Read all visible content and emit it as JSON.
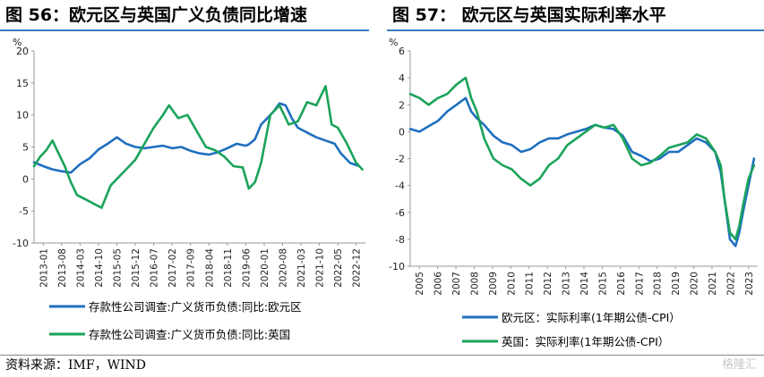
{
  "left_panel": {
    "title": "图 56：欧元区与英国广义负债同比增速",
    "unit": "%",
    "source": "资料来源：IMF，WIND"
  },
  "right_panel": {
    "title": "图 57：  欧元区与英国实际利率水平",
    "unit": "%"
  },
  "watermark": "格隆汇",
  "colors": {
    "series_a": "#1f6fbf",
    "series_b": "#1aa35a",
    "rule": "#3a7bbf"
  },
  "chart_data": [
    {
      "type": "line",
      "title": "图 56：欧元区与英国广义负债同比增速",
      "ylabel": "%",
      "ylim": [
        -10,
        20
      ],
      "yticks": [
        -10,
        -5,
        0,
        5,
        10,
        15,
        20
      ],
      "xlim": [
        2013.0,
        2023.8
      ],
      "xticks": [
        "2013-01",
        "2013-08",
        "2014-03",
        "2014-10",
        "2015-05",
        "2015-12",
        "2016-07",
        "2017-02",
        "2017-09",
        "2018-04",
        "2018-11",
        "2019-06",
        "2020-01",
        "2020-08",
        "2021-03",
        "2021-10",
        "2022-05",
        "2022-12"
      ],
      "legend_position": "bottom",
      "series": [
        {
          "name": "存款性公司调查:广义货币负债:同比:欧元区",
          "x": [
            2013.0,
            2013.3,
            2013.6,
            2013.9,
            2014.2,
            2014.5,
            2014.8,
            2015.1,
            2015.4,
            2015.7,
            2016.0,
            2016.3,
            2016.6,
            2016.9,
            2017.2,
            2017.5,
            2017.8,
            2018.1,
            2018.4,
            2018.7,
            2019.0,
            2019.3,
            2019.6,
            2019.9,
            2020.0,
            2020.2,
            2020.4,
            2020.6,
            2020.8,
            2021.0,
            2021.2,
            2021.4,
            2021.6,
            2021.8,
            2022.0,
            2022.2,
            2022.5,
            2022.8,
            2023.0,
            2023.3,
            2023.6
          ],
          "values": [
            2.6,
            2.0,
            1.5,
            1.2,
            1.0,
            2.3,
            3.2,
            4.6,
            5.5,
            6.5,
            5.5,
            5.0,
            4.8,
            5.0,
            5.2,
            4.8,
            5.0,
            4.4,
            4.0,
            3.8,
            4.2,
            4.8,
            5.5,
            5.2,
            5.4,
            6.2,
            8.5,
            9.5,
            10.5,
            11.8,
            11.5,
            9.5,
            8.0,
            7.5,
            7.0,
            6.5,
            6.0,
            5.5,
            4.0,
            2.5,
            2.0
          ]
        },
        {
          "name": "存款性公司调查:广义货币负债:同比:英国",
          "x": [
            2013.0,
            2013.2,
            2013.4,
            2013.6,
            2013.8,
            2014.0,
            2014.2,
            2014.4,
            2014.6,
            2014.8,
            2015.0,
            2015.2,
            2015.5,
            2015.8,
            2016.0,
            2016.3,
            2016.6,
            2016.9,
            2017.2,
            2017.4,
            2017.7,
            2018.0,
            2018.3,
            2018.6,
            2018.9,
            2019.2,
            2019.5,
            2019.8,
            2020.0,
            2020.2,
            2020.4,
            2020.7,
            2021.0,
            2021.3,
            2021.6,
            2021.9,
            2022.2,
            2022.5,
            2022.7,
            2022.9,
            2023.2,
            2023.5,
            2023.7
          ],
          "values": [
            2.0,
            3.5,
            4.5,
            6.0,
            4.0,
            2.0,
            -0.5,
            -2.5,
            -3.0,
            -3.5,
            -4.0,
            -4.5,
            -1.0,
            0.5,
            1.5,
            3.0,
            5.5,
            8.0,
            10.0,
            11.5,
            9.5,
            10.0,
            7.5,
            5.0,
            4.5,
            3.5,
            2.0,
            1.8,
            -1.5,
            -0.5,
            2.5,
            10.0,
            11.5,
            8.5,
            9.0,
            12.0,
            11.5,
            14.5,
            8.5,
            8.0,
            5.5,
            2.5,
            1.5
          ]
        }
      ]
    },
    {
      "type": "line",
      "title": "图 57：  欧元区与英国实际利率水平",
      "ylabel": "%",
      "ylim": [
        -10,
        6
      ],
      "yticks": [
        -10,
        -8,
        -6,
        -4,
        -2,
        0,
        2,
        4,
        6
      ],
      "xlim": [
        2005.0,
        2023.8
      ],
      "xticks": [
        "2005",
        "2006",
        "2007",
        "2008",
        "2009",
        "2010",
        "2011",
        "2012",
        "2013",
        "2014",
        "2015",
        "2016",
        "2017",
        "2018",
        "2019",
        "2020",
        "2021",
        "2022",
        "2023"
      ],
      "legend_position": "bottom",
      "series": [
        {
          "name": "欧元区：实际利率(1年期公债-CPI）",
          "x": [
            2005.0,
            2005.5,
            2006.0,
            2006.5,
            2007.0,
            2007.5,
            2008.0,
            2008.3,
            2008.6,
            2009.0,
            2009.5,
            2010.0,
            2010.5,
            2011.0,
            2011.5,
            2012.0,
            2012.5,
            2013.0,
            2013.5,
            2014.0,
            2014.5,
            2015.0,
            2015.5,
            2016.0,
            2016.5,
            2017.0,
            2017.5,
            2018.0,
            2018.5,
            2019.0,
            2019.5,
            2020.0,
            2020.5,
            2021.0,
            2021.5,
            2021.8,
            2022.0,
            2022.3,
            2022.6,
            2022.8,
            2023.0,
            2023.3,
            2023.6
          ],
          "values": [
            0.2,
            0.0,
            0.4,
            0.8,
            1.5,
            2.0,
            2.5,
            1.5,
            1.0,
            0.5,
            -0.3,
            -0.8,
            -1.0,
            -1.5,
            -1.3,
            -0.8,
            -0.5,
            -0.5,
            -0.2,
            0.0,
            0.2,
            0.5,
            0.3,
            0.2,
            -0.3,
            -1.5,
            -1.8,
            -2.2,
            -2.0,
            -1.5,
            -1.5,
            -1.0,
            -0.5,
            -0.8,
            -1.5,
            -3.0,
            -5.0,
            -8.0,
            -8.5,
            -7.5,
            -6.0,
            -4.0,
            -2.0
          ]
        },
        {
          "name": "英国：实际利率(1年期公债-CPI）",
          "x": [
            2005.0,
            2005.5,
            2006.0,
            2006.5,
            2007.0,
            2007.5,
            2008.0,
            2008.3,
            2008.6,
            2009.0,
            2009.5,
            2010.0,
            2010.5,
            2011.0,
            2011.5,
            2012.0,
            2012.5,
            2013.0,
            2013.5,
            2014.0,
            2014.5,
            2015.0,
            2015.5,
            2016.0,
            2016.5,
            2017.0,
            2017.5,
            2018.0,
            2018.5,
            2019.0,
            2019.5,
            2020.0,
            2020.5,
            2021.0,
            2021.5,
            2021.8,
            2022.0,
            2022.3,
            2022.6,
            2022.8,
            2023.0,
            2023.3,
            2023.6
          ],
          "values": [
            2.8,
            2.5,
            2.0,
            2.5,
            2.8,
            3.5,
            4.0,
            2.5,
            1.5,
            -0.5,
            -2.0,
            -2.5,
            -2.8,
            -3.5,
            -4.0,
            -3.5,
            -2.5,
            -2.0,
            -1.0,
            -0.5,
            0.0,
            0.5,
            0.3,
            0.5,
            -0.5,
            -2.0,
            -2.5,
            -2.3,
            -1.8,
            -1.2,
            -1.0,
            -0.8,
            -0.2,
            -0.5,
            -1.5,
            -2.5,
            -5.0,
            -7.5,
            -8.0,
            -7.0,
            -5.5,
            -3.5,
            -2.5
          ]
        }
      ]
    }
  ]
}
